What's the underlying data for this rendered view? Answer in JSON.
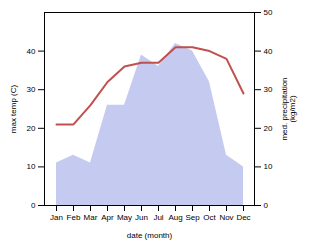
{
  "chart_data": {
    "type": "line",
    "xlabel": "date (month)",
    "ylabel": "max temp (C)",
    "y2label": "med. precipitation\n(kg/m2)",
    "categories": [
      "Jan",
      "Feb",
      "Mar",
      "Apr",
      "May",
      "Jun",
      "Jul",
      "Aug",
      "Sep",
      "Oct",
      "Nov",
      "Dec"
    ],
    "series": [
      {
        "type": "area",
        "axis": "y2",
        "color": "#c5caf0",
        "values": [
          11,
          13,
          11,
          26,
          26,
          39,
          36,
          42,
          40,
          32,
          13,
          10
        ]
      },
      {
        "type": "line",
        "color": "#c0504d",
        "values": [
          21,
          21,
          26,
          32,
          36,
          37,
          37,
          41,
          41,
          40,
          38,
          29
        ]
      }
    ],
    "ylim": [
      0,
      50
    ],
    "yticks": [
      0,
      10,
      20,
      30,
      40
    ],
    "y2lim": [
      0,
      50
    ],
    "y2ticks": [
      0,
      10,
      20,
      30,
      40,
      50
    ]
  }
}
